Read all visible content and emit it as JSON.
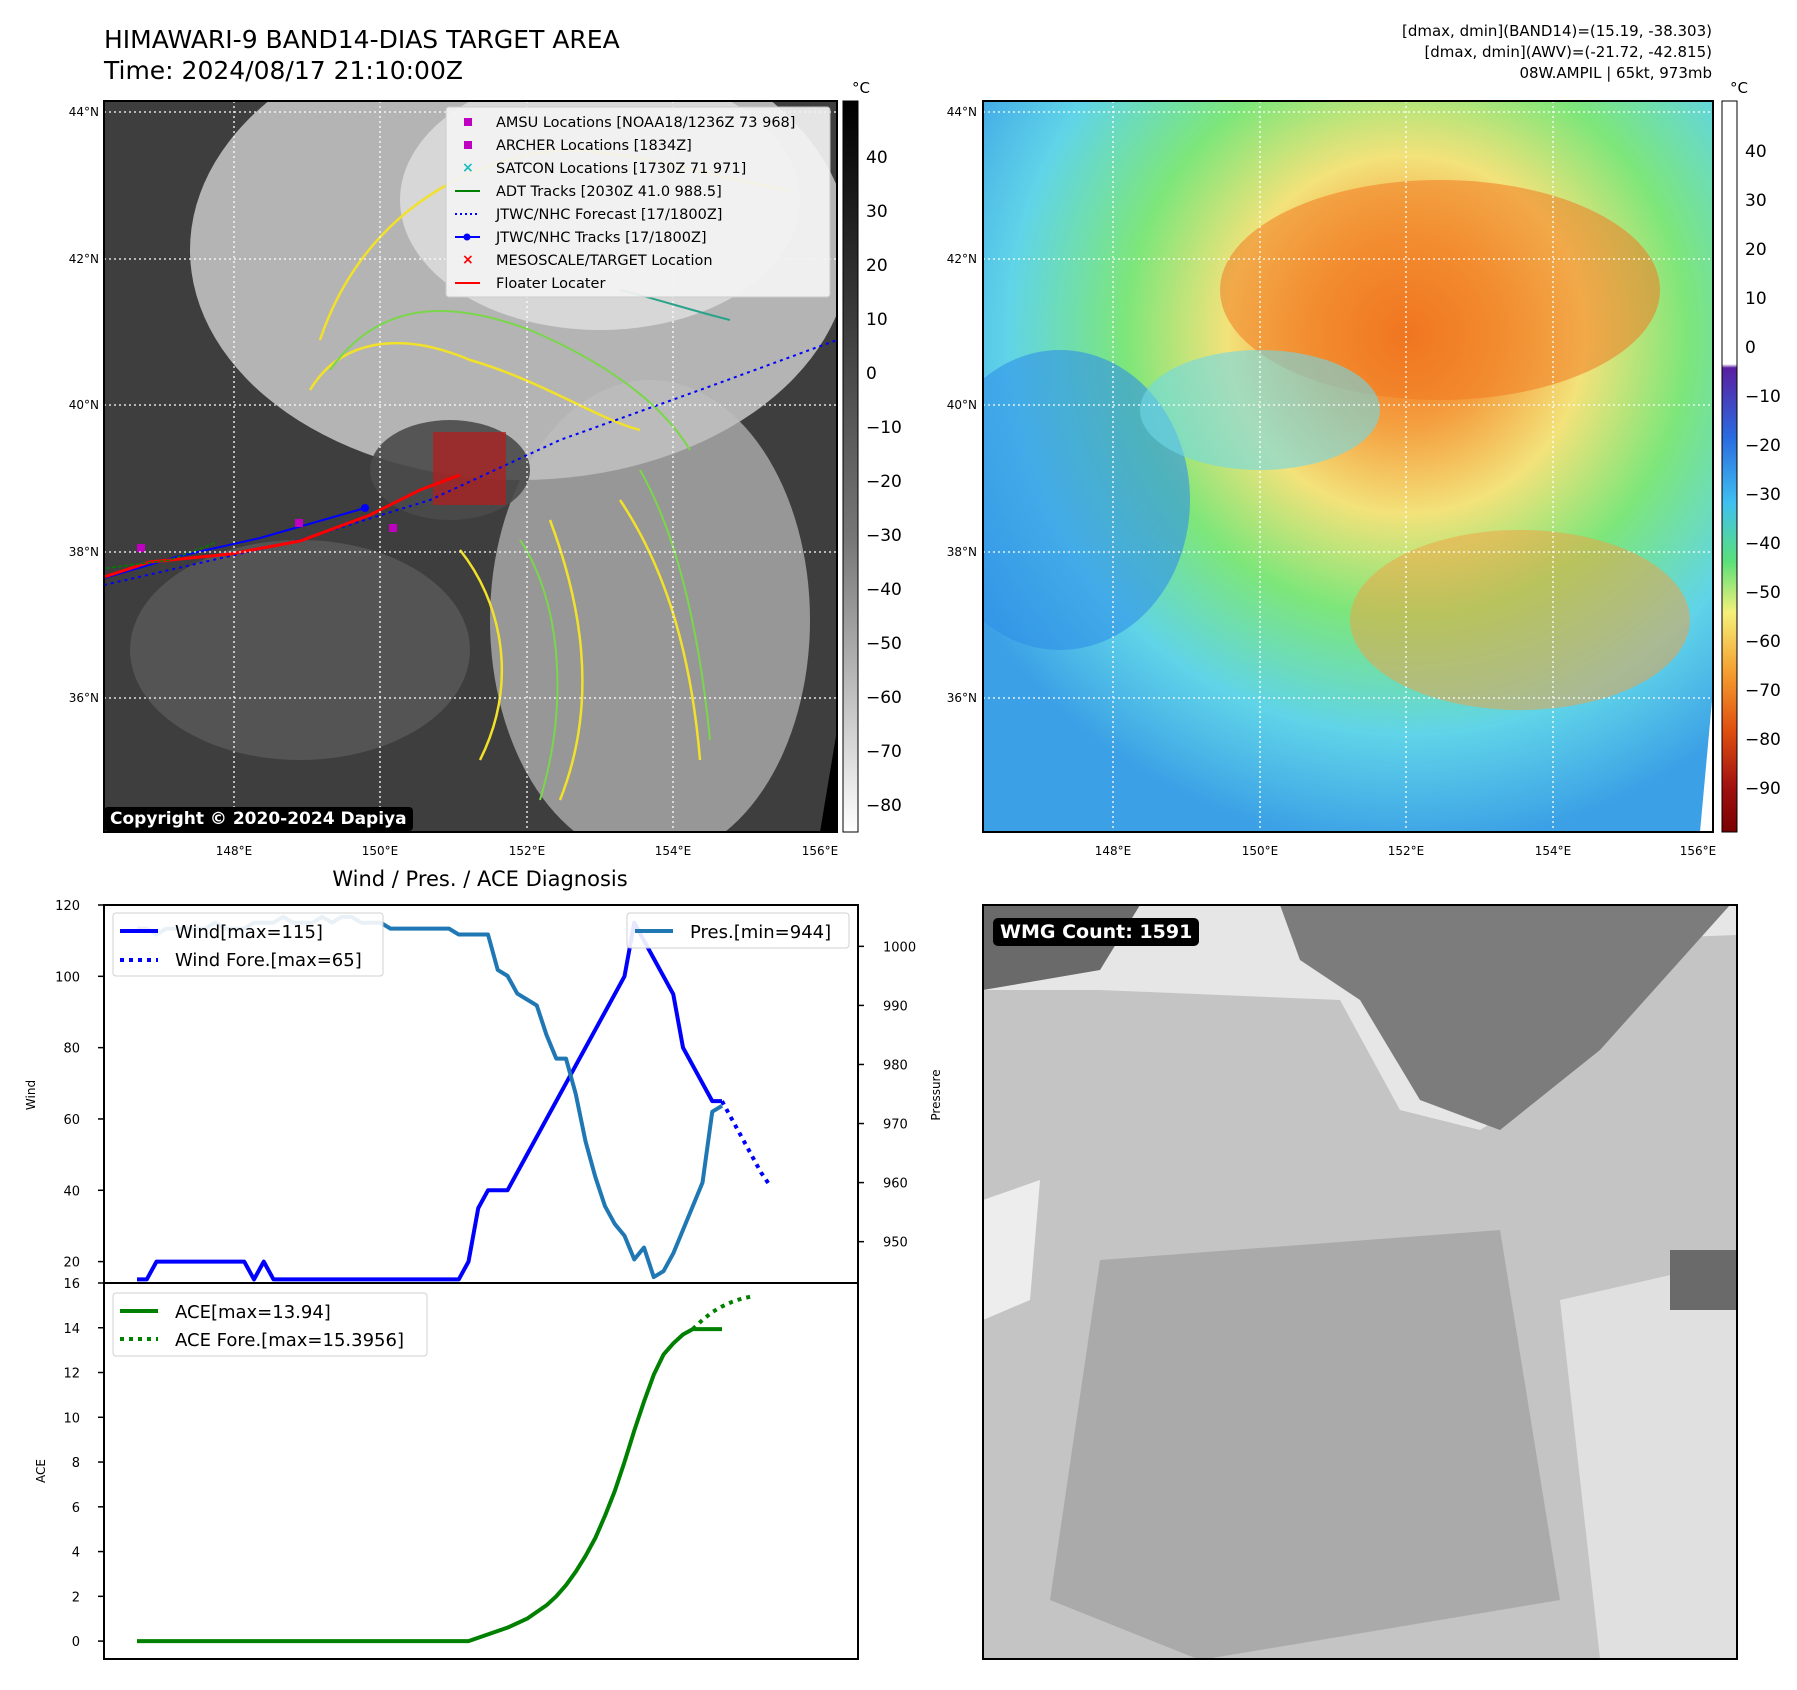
{
  "header": {
    "title_line1": "HIMAWARI-9 BAND14-DIAS TARGET AREA",
    "title_line2": "Time: 2024/08/17 21:10:00Z",
    "info_line1": "[dmax, dmin](BAND14)=(15.19, -38.303)",
    "info_line2": "[dmax, dmin](AWV)=(-21.72, -42.815)",
    "info_line3": "08W.AMPIL | 65kt, 973mb"
  },
  "ir_map": {
    "lat_labels": [
      "44°N",
      "42°N",
      "40°N",
      "38°N",
      "36°N"
    ],
    "lon_labels": [
      "148°E",
      "150°E",
      "152°E",
      "154°E",
      "156°E"
    ],
    "colorbar_unit": "°C",
    "colorbar_ticks": [
      "40",
      "30",
      "20",
      "10",
      "0",
      "−10",
      "−20",
      "−30",
      "−40",
      "−50",
      "−60",
      "−70",
      "−80"
    ],
    "copyright": "Copyright © 2020-2024 Dapiya",
    "legend": [
      {
        "label": "AMSU Locations [NOAA18/1236Z 73 968]",
        "marker": "square",
        "color": "#c000c0"
      },
      {
        "label": "ARCHER Locations [1834Z]",
        "marker": "square",
        "color": "#c000c0"
      },
      {
        "label": "SATCON Locations [1730Z 71 971]",
        "marker": "x",
        "color": "#1abcbc"
      },
      {
        "label": "ADT Tracks [2030Z 41.0 988.5]",
        "marker": "line",
        "color": "#008000"
      },
      {
        "label": "JTWC/NHC Forecast [17/1800Z]",
        "marker": "dotted",
        "color": "#0000ff"
      },
      {
        "label": "JTWC/NHC Tracks [17/1800Z]",
        "marker": "line-dot",
        "color": "#0000ff"
      },
      {
        "label": "MESOSCALE/TARGET Location",
        "marker": "x",
        "color": "#ff0000"
      },
      {
        "label": "Floater Locater",
        "marker": "line",
        "color": "#ff0000"
      }
    ]
  },
  "wv_map": {
    "lat_labels": [
      "44°N",
      "42°N",
      "40°N",
      "38°N",
      "36°N"
    ],
    "lon_labels": [
      "148°E",
      "150°E",
      "152°E",
      "154°E",
      "156°E"
    ],
    "colorbar_unit": "°C",
    "colorbar_ticks": [
      "40",
      "30",
      "20",
      "10",
      "0",
      "−10",
      "−20",
      "−30",
      "−40",
      "−50",
      "−60",
      "−70",
      "−80",
      "−90"
    ]
  },
  "wmg": {
    "label": "WMG Count: 1591"
  },
  "chart_data": [
    {
      "type": "line",
      "title": "Wind / Pres. / ACE Diagnosis",
      "ylabel": "Wind",
      "y2label": "Pressure",
      "ylim": [
        14,
        120
      ],
      "y2lim": [
        943,
        1007
      ],
      "yticks": [
        "20",
        "40",
        "60",
        "80",
        "100",
        "120"
      ],
      "y2ticks": [
        "950",
        "960",
        "970",
        "980",
        "990",
        "1000"
      ],
      "series": [
        {
          "name": "Wind[max=115]",
          "color": "#0000ff",
          "style": "solid",
          "axis": "left",
          "x": [
            0,
            1,
            2,
            3,
            4,
            5,
            6,
            7,
            8,
            9,
            10,
            11,
            12,
            13,
            14,
            15,
            16,
            17,
            18,
            19,
            20,
            21,
            22,
            23,
            24,
            25,
            26,
            27,
            28,
            29,
            30,
            31,
            32,
            33,
            34,
            35,
            36,
            37,
            38,
            39,
            40,
            41,
            42,
            43,
            44,
            45,
            46,
            47,
            48,
            49,
            50,
            51,
            52,
            53,
            54,
            55,
            56,
            57,
            58,
            59,
            60
          ],
          "values": [
            15,
            15,
            20,
            20,
            20,
            20,
            20,
            20,
            20,
            20,
            20,
            20,
            15,
            20,
            15,
            15,
            15,
            15,
            15,
            15,
            15,
            15,
            15,
            15,
            15,
            15,
            15,
            15,
            15,
            15,
            15,
            15,
            15,
            15,
            20,
            35,
            40,
            40,
            40,
            45,
            50,
            55,
            60,
            65,
            70,
            75,
            80,
            85,
            90,
            95,
            100,
            115,
            110,
            105,
            100,
            95,
            80,
            75,
            70,
            65,
            65
          ]
        },
        {
          "name": "Wind Fore.[max=65]",
          "color": "#0000ff",
          "style": "dotted",
          "axis": "left",
          "x": [
            60,
            61,
            62,
            63,
            64,
            65
          ],
          "values": [
            65,
            60,
            55,
            50,
            45,
            41
          ]
        },
        {
          "name": "Pres.[min=944]",
          "color": "#1f77b4",
          "style": "solid",
          "axis": "right",
          "x": [
            0,
            1,
            2,
            3,
            4,
            5,
            6,
            7,
            8,
            9,
            10,
            11,
            12,
            13,
            14,
            15,
            16,
            17,
            18,
            19,
            20,
            21,
            22,
            23,
            24,
            25,
            26,
            27,
            28,
            29,
            30,
            31,
            32,
            33,
            34,
            35,
            36,
            37,
            38,
            39,
            40,
            41,
            42,
            43,
            44,
            45,
            46,
            47,
            48,
            49,
            50,
            51,
            52,
            53,
            54,
            55,
            56,
            57,
            58,
            59,
            60
          ],
          "values": [
            1003,
            1003,
            1002,
            1003,
            1003,
            1003,
            1003,
            1003,
            1004,
            1003,
            1003,
            1003,
            1004,
            1004,
            1004,
            1005,
            1004,
            1004,
            1004,
            1005,
            1004,
            1005,
            1005,
            1004,
            1004,
            1004,
            1003,
            1003,
            1003,
            1003,
            1003,
            1003,
            1003,
            1002,
            1002,
            1002,
            1002,
            996,
            995,
            992,
            991,
            990,
            985,
            981,
            981,
            975,
            967,
            961,
            956,
            953,
            951,
            947,
            949,
            944,
            945,
            948,
            952,
            956,
            960,
            972,
            973
          ]
        }
      ]
    },
    {
      "type": "line",
      "ylabel": "ACE",
      "ylim": [
        -0.8,
        16
      ],
      "yticks": [
        "0",
        "2",
        "4",
        "6",
        "8",
        "10",
        "12",
        "14",
        "16"
      ],
      "series": [
        {
          "name": "ACE[max=13.94]",
          "color": "#008000",
          "style": "solid",
          "x": [
            0,
            1,
            2,
            3,
            4,
            5,
            6,
            7,
            8,
            9,
            10,
            11,
            12,
            13,
            14,
            15,
            16,
            17,
            18,
            19,
            20,
            21,
            22,
            23,
            24,
            25,
            26,
            27,
            28,
            29,
            30,
            31,
            32,
            33,
            34,
            35,
            36,
            37,
            38,
            39,
            40,
            41,
            42,
            43,
            44,
            45,
            46,
            47,
            48,
            49,
            50,
            51,
            52,
            53,
            54,
            55,
            56,
            57,
            58,
            59,
            60
          ],
          "values": [
            0,
            0,
            0,
            0,
            0,
            0,
            0,
            0,
            0,
            0,
            0,
            0,
            0,
            0,
            0,
            0,
            0,
            0,
            0,
            0,
            0,
            0,
            0,
            0,
            0,
            0,
            0,
            0,
            0,
            0,
            0,
            0,
            0,
            0,
            0,
            0.15,
            0.3,
            0.45,
            0.6,
            0.8,
            1.0,
            1.3,
            1.6,
            2.0,
            2.5,
            3.1,
            3.8,
            4.6,
            5.6,
            6.7,
            8.0,
            9.4,
            10.7,
            11.9,
            12.8,
            13.3,
            13.7,
            13.94,
            13.94,
            13.94,
            13.94
          ]
        },
        {
          "name": "ACE Fore.[max=15.3956]",
          "color": "#008000",
          "style": "dotted",
          "x": [
            57,
            58,
            59,
            60,
            61,
            62,
            63
          ],
          "values": [
            13.94,
            14.35,
            14.7,
            14.95,
            15.15,
            15.3,
            15.3956
          ]
        }
      ]
    }
  ]
}
